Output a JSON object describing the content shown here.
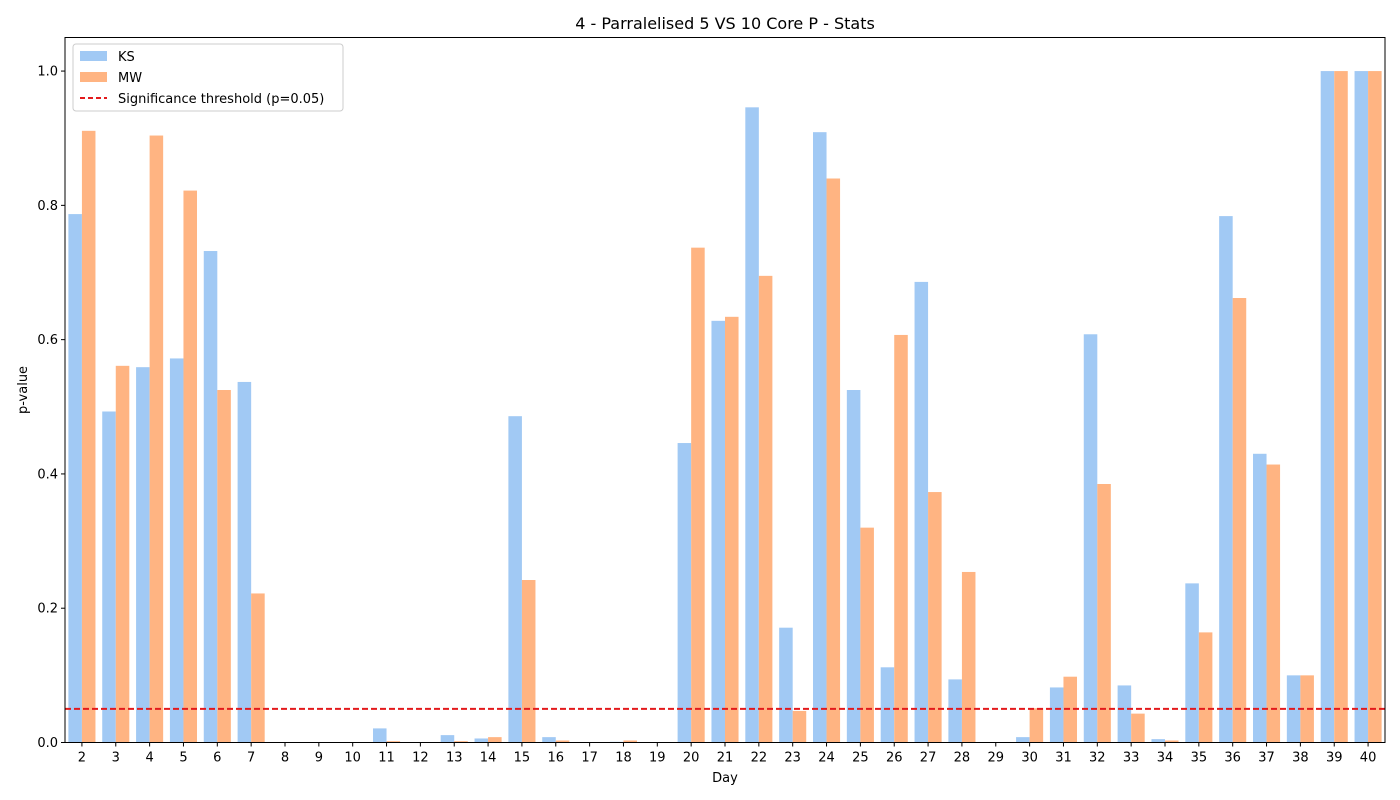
{
  "chart_data": {
    "type": "bar",
    "title": "4 - Parralelised 5 VS 10 Core P - Stats",
    "xlabel": "Day",
    "ylabel": "p-value",
    "ylim": [
      0,
      1.05
    ],
    "yticks": [
      "0.0",
      "0.2",
      "0.4",
      "0.6",
      "0.8",
      "1.0"
    ],
    "grid": false,
    "legend_position": "top-left",
    "categories": [
      "2",
      "3",
      "4",
      "5",
      "6",
      "7",
      "8",
      "9",
      "10",
      "11",
      "12",
      "13",
      "14",
      "15",
      "16",
      "17",
      "18",
      "19",
      "20",
      "21",
      "22",
      "23",
      "24",
      "25",
      "26",
      "27",
      "28",
      "29",
      "30",
      "31",
      "32",
      "33",
      "34",
      "35",
      "36",
      "37",
      "38",
      "39",
      "40"
    ],
    "series": [
      {
        "name": "KS",
        "color": "#a1c9f4",
        "values": [
          0.787,
          0.493,
          0.559,
          0.572,
          0.732,
          0.537,
          0.0,
          0.0,
          0.0,
          0.021,
          0.0,
          0.011,
          0.006,
          0.486,
          0.008,
          0.0,
          0.001,
          0.0,
          0.446,
          0.628,
          0.946,
          0.171,
          0.909,
          0.525,
          0.112,
          0.686,
          0.094,
          0.0,
          0.008,
          0.082,
          0.608,
          0.085,
          0.005,
          0.237,
          0.784,
          0.43,
          0.1,
          1.0,
          1.0
        ]
      },
      {
        "name": "MW",
        "color": "#ffb482",
        "values": [
          0.911,
          0.561,
          0.904,
          0.822,
          0.525,
          0.222,
          0.0,
          0.0,
          0.0,
          0.002,
          0.0,
          0.002,
          0.008,
          0.242,
          0.003,
          0.0,
          0.003,
          0.0,
          0.737,
          0.634,
          0.695,
          0.047,
          0.84,
          0.32,
          0.607,
          0.373,
          0.254,
          0.0,
          0.051,
          0.098,
          0.385,
          0.043,
          0.003,
          0.164,
          0.662,
          0.414,
          0.1,
          1.0,
          1.0
        ]
      }
    ],
    "threshold": {
      "label": "Significance threshold (p=0.05)",
      "value": 0.05,
      "color": "#e31a1c"
    }
  }
}
